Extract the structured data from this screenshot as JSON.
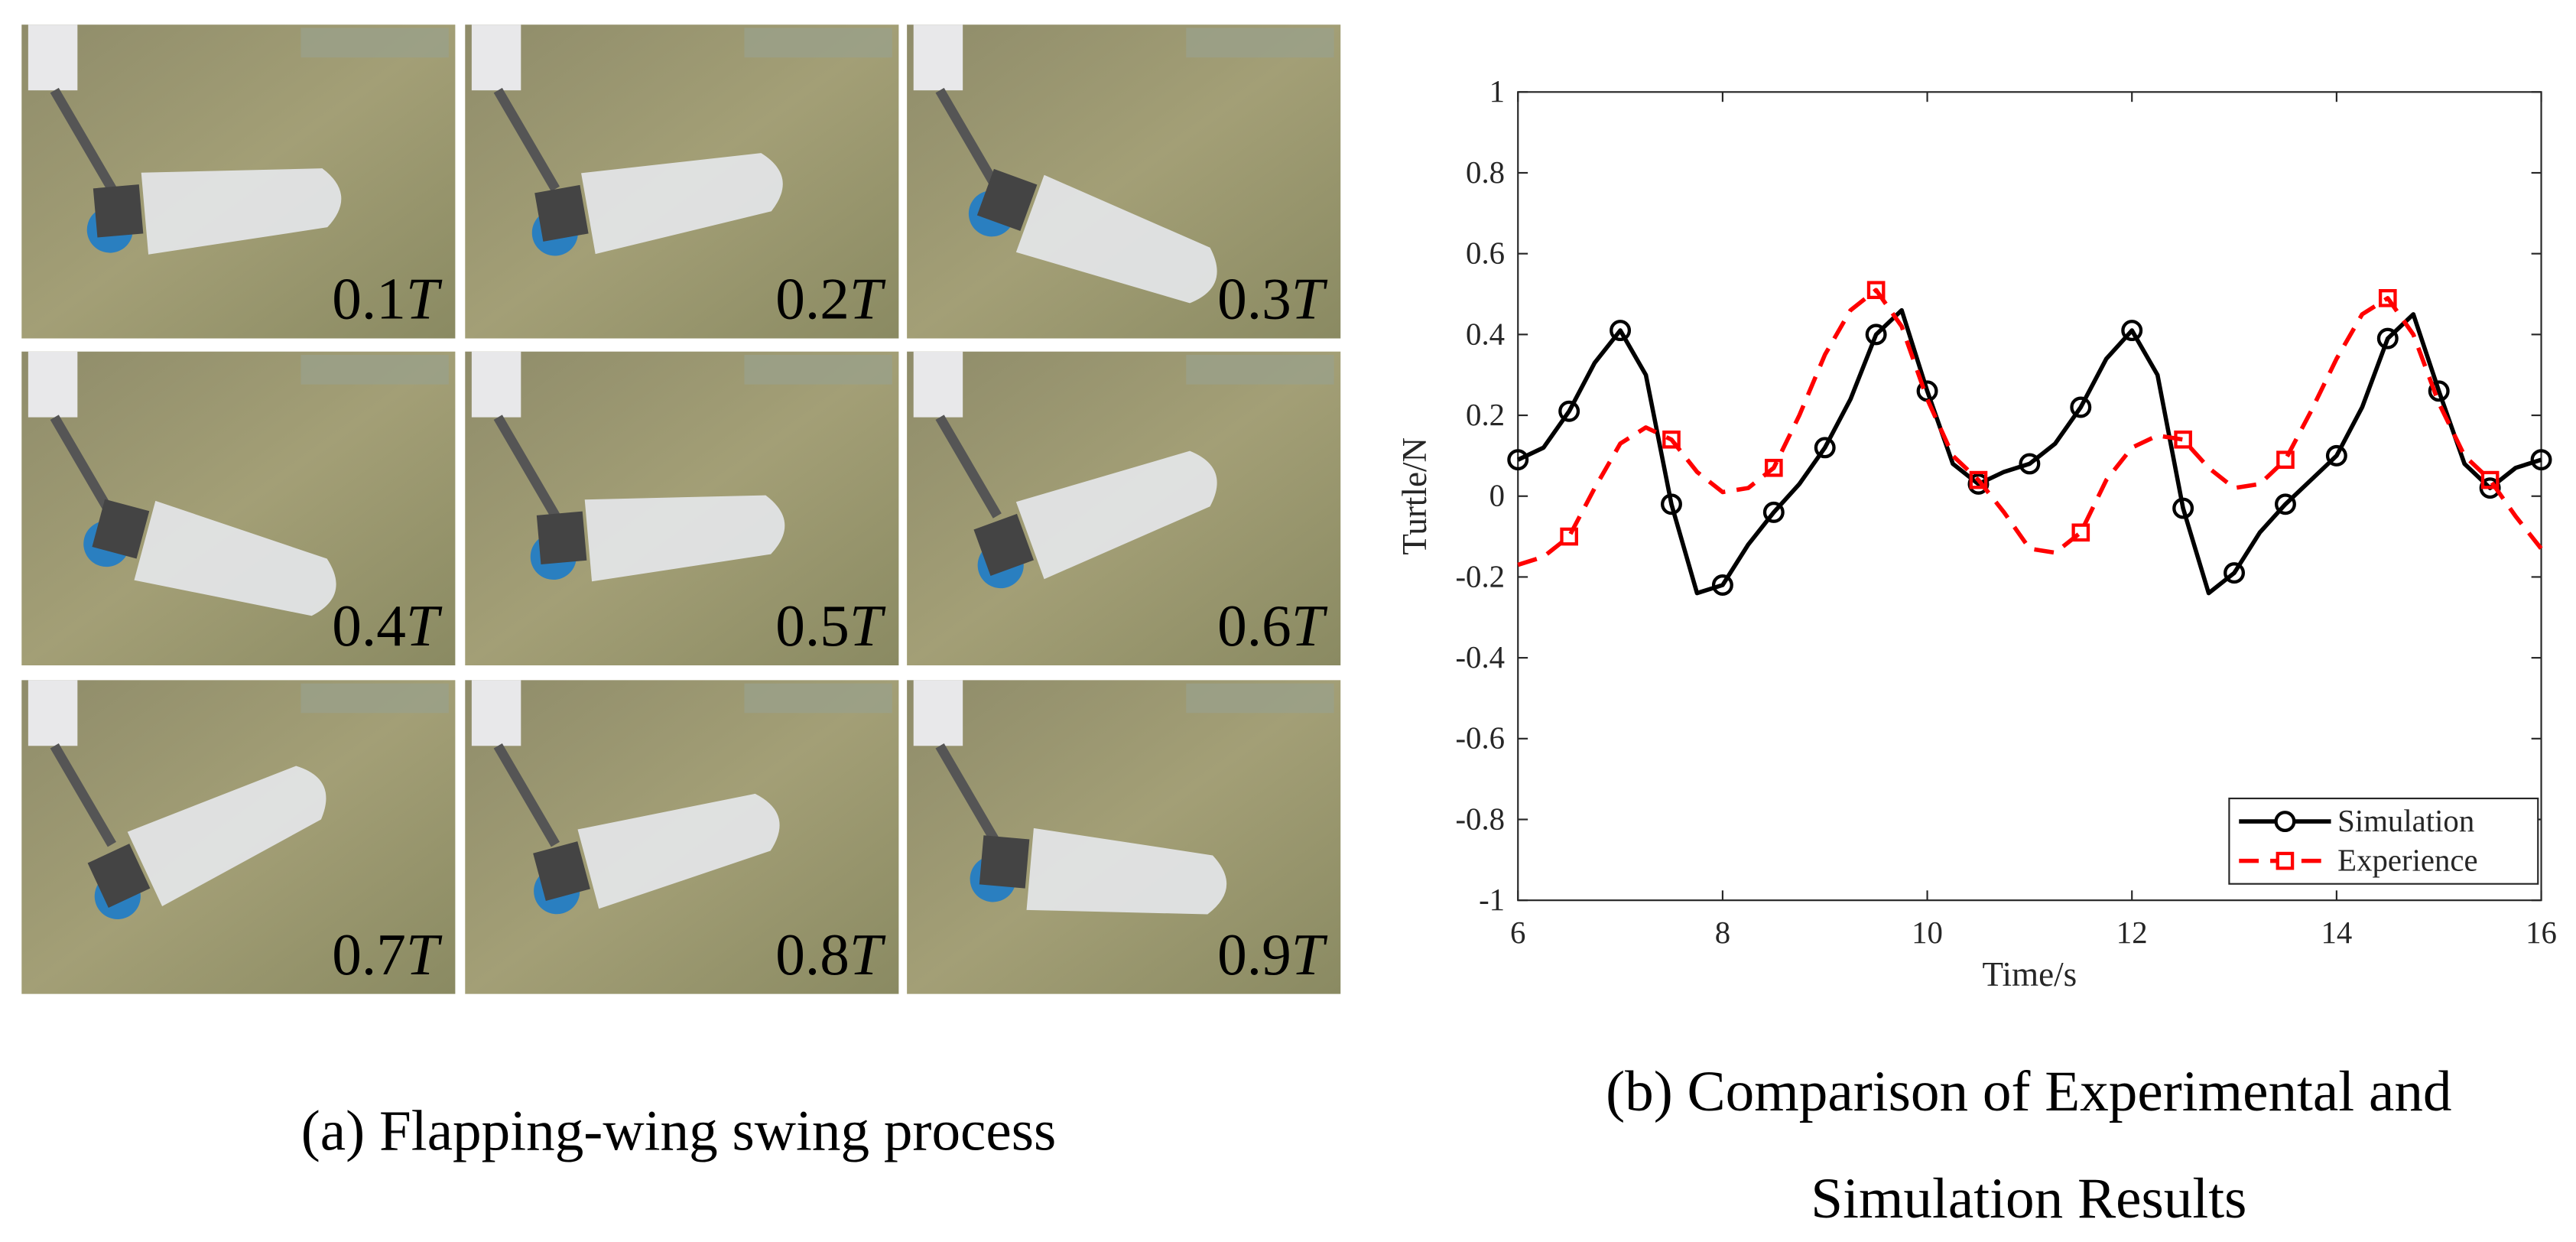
{
  "figure": {
    "panels": [
      {
        "time": "0.1",
        "unit": "T"
      },
      {
        "time": "0.2",
        "unit": "T"
      },
      {
        "time": "0.3",
        "unit": "T"
      },
      {
        "time": "0.4",
        "unit": "T"
      },
      {
        "time": "0.5",
        "unit": "T"
      },
      {
        "time": "0.6",
        "unit": "T"
      },
      {
        "time": "0.7",
        "unit": "T"
      },
      {
        "time": "0.8",
        "unit": "T"
      },
      {
        "time": "0.9",
        "unit": "T"
      }
    ],
    "caption_a": "(a) Flapping-wing swing process",
    "caption_b": [
      "(b) Comparison of Experimental and",
      "Simulation Results"
    ]
  },
  "chart_data": {
    "type": "line",
    "x_label": "Time/s",
    "y_label": "Turtle/N",
    "x": [
      6,
      6.25,
      6.5,
      6.75,
      7,
      7.25,
      7.5,
      7.75,
      8,
      8.25,
      8.5,
      8.75,
      9,
      9.25,
      9.5,
      9.75,
      10,
      10.25,
      10.5,
      10.75,
      11,
      11.25,
      11.5,
      11.75,
      12,
      12.25,
      12.5,
      12.75,
      13,
      13.25,
      13.5,
      13.75,
      14,
      14.25,
      14.5,
      14.75,
      15,
      15.25,
      15.5,
      15.75,
      16
    ],
    "series": [
      {
        "name": "Simulation",
        "color": "#000000",
        "dash": "solid",
        "marker": "circle",
        "marker_every": 2,
        "marker_start": 0,
        "values": [
          0.09,
          0.12,
          0.21,
          0.33,
          0.41,
          0.3,
          -0.02,
          -0.24,
          -0.22,
          -0.12,
          -0.04,
          0.03,
          0.12,
          0.24,
          0.4,
          0.46,
          0.26,
          0.08,
          0.03,
          0.06,
          0.08,
          0.13,
          0.22,
          0.34,
          0.41,
          0.3,
          -0.03,
          -0.24,
          -0.19,
          -0.09,
          -0.02,
          0.04,
          0.1,
          0.22,
          0.39,
          0.45,
          0.26,
          0.08,
          0.02,
          0.07,
          0.09
        ]
      },
      {
        "name": "Experience",
        "color": "#ff0000",
        "dash": "dashed",
        "marker": "square",
        "marker_every": 4,
        "marker_start": 2,
        "values": [
          -0.17,
          -0.15,
          -0.1,
          0.02,
          0.13,
          0.17,
          0.14,
          0.06,
          0.01,
          0.02,
          0.07,
          0.2,
          0.35,
          0.46,
          0.51,
          0.42,
          0.24,
          0.1,
          0.04,
          -0.04,
          -0.13,
          -0.14,
          -0.09,
          0.04,
          0.12,
          0.15,
          0.14,
          0.07,
          0.02,
          0.03,
          0.09,
          0.21,
          0.34,
          0.45,
          0.49,
          0.4,
          0.23,
          0.1,
          0.04,
          -0.05,
          -0.13
        ]
      }
    ],
    "xlim": [
      6,
      16
    ],
    "ylim": [
      -1,
      1
    ],
    "xticks": [
      6,
      8,
      10,
      12,
      14,
      16
    ],
    "yticks": [
      -1,
      -0.8,
      -0.6,
      -0.4,
      -0.2,
      0,
      0.2,
      0.4,
      0.6,
      0.8,
      1
    ],
    "legend": "lower right"
  }
}
